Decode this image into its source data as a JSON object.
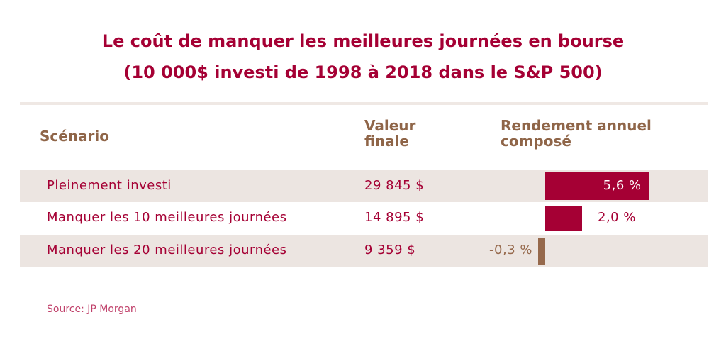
{
  "chart_data": {
    "type": "table",
    "title": "Le coût de manquer les meilleures journées en bourse",
    "subtitle": "(10 000$ investi de 1998 à 2018 dans le S&P 500)",
    "columns": [
      "Scénario",
      "Valeur finale",
      "Rendement annuel composé"
    ],
    "rows": [
      {
        "scenario": "Pleinement investi",
        "value": "29 845 $",
        "return": 5.6,
        "return_label": "5,6 %"
      },
      {
        "scenario": "Manquer les 10 meilleures journées",
        "value": "14 895 $",
        "return": 2.0,
        "return_label": "2,0 %"
      },
      {
        "scenario": "Manquer les 20 meilleures journées",
        "value": "9 359 $",
        "return": -0.3,
        "return_label": "-0,3 %"
      }
    ],
    "source": "Source: JP Morgan",
    "colors": {
      "positive": "#a50034",
      "negative": "#96694c",
      "band": "#ece5e1",
      "header": "#8f6548"
    }
  }
}
